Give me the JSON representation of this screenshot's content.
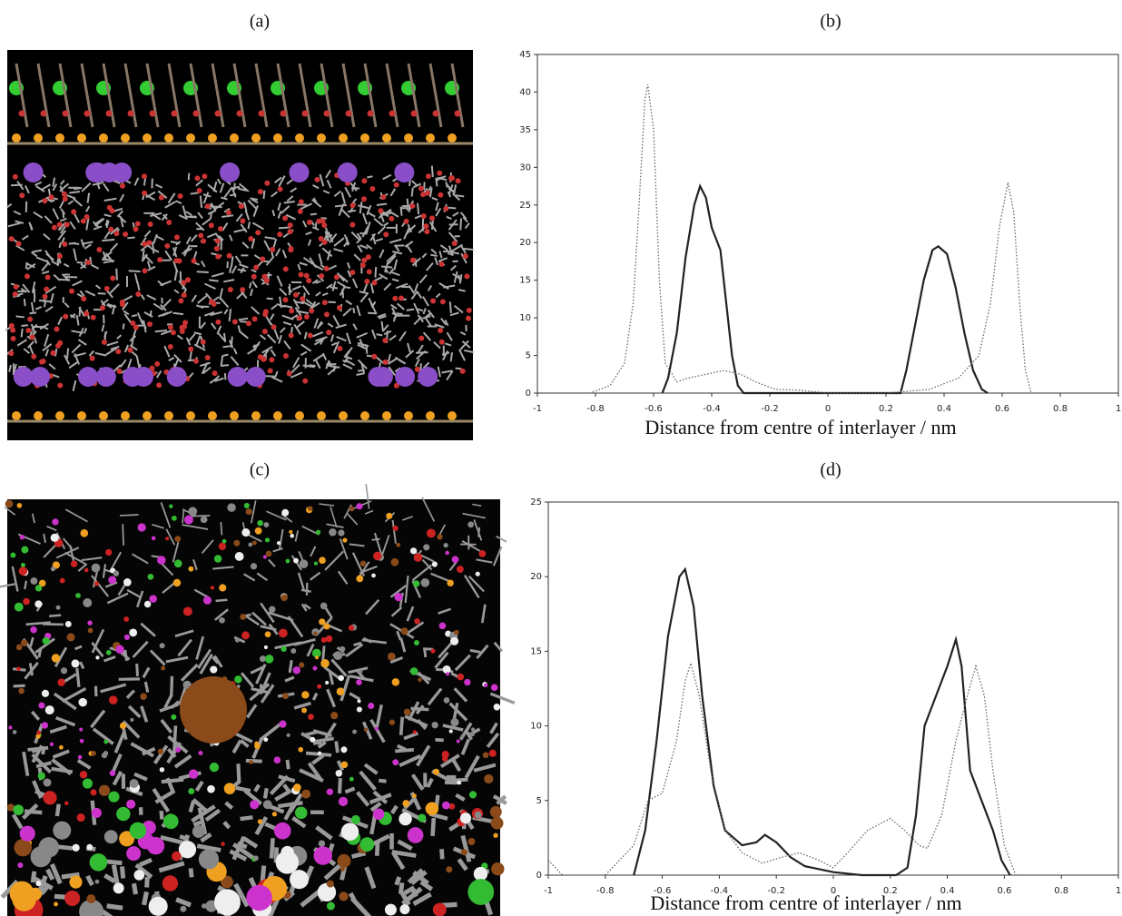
{
  "image_panels": [
    {
      "label": "(a)"
    },
    {
      "label": "(c)"
    }
  ],
  "chart_data": [
    {
      "type": "line",
      "title": "(b)",
      "x_label": "Distance from centre of interlayer / nm",
      "xlim": [
        -1,
        1
      ],
      "xticks": [
        -1,
        -0.8,
        -0.6,
        -0.4,
        -0.2,
        0,
        0.2,
        0.4,
        0.6,
        0.8,
        1
      ],
      "ylim": [
        0,
        45
      ],
      "yticks": [
        0,
        5,
        10,
        15,
        20,
        25,
        30,
        35,
        40,
        45
      ],
      "series": [
        {
          "color": "#222222",
          "style": "solid",
          "x": [
            -0.57,
            -0.55,
            -0.52,
            -0.49,
            -0.46,
            -0.44,
            -0.42,
            -0.4,
            -0.37,
            -0.35,
            -0.33,
            -0.31,
            -0.29,
            0,
            0.25,
            0.27,
            0.3,
            0.33,
            0.36,
            0.38,
            0.41,
            0.44,
            0.47,
            0.5,
            0.53,
            0.55
          ],
          "values": [
            0,
            2,
            8,
            18,
            25,
            27.5,
            26,
            22,
            19,
            12,
            5,
            1,
            0,
            0,
            0,
            3,
            9,
            15,
            19,
            19.5,
            18.5,
            14,
            8,
            3,
            0.5,
            0
          ]
        },
        {
          "color": "#666666",
          "style": "dotted",
          "x": [
            -0.82,
            -0.75,
            -0.7,
            -0.67,
            -0.65,
            -0.63,
            -0.62,
            -0.6,
            -0.58,
            -0.56,
            -0.52,
            -0.48,
            -0.42,
            -0.36,
            -0.3,
            -0.25,
            -0.18,
            -0.1,
            0,
            0.2,
            0.35,
            0.45,
            0.52,
            0.56,
            0.59,
            0.62,
            0.64,
            0.66,
            0.68,
            0.7
          ],
          "values": [
            0,
            1,
            4,
            12,
            25,
            39,
            41,
            35,
            15,
            4,
            1.5,
            2,
            2.5,
            3,
            2.5,
            1.5,
            0.5,
            0.4,
            0,
            0,
            0.5,
            2,
            5,
            12,
            22,
            28,
            24,
            12,
            3,
            0
          ]
        }
      ]
    },
    {
      "type": "line",
      "title": "(d)",
      "x_label": "Distance from centre of interlayer / nm",
      "xlim": [
        -1,
        1
      ],
      "xticks": [
        -1,
        -0.8,
        -0.6,
        -0.4,
        -0.2,
        0,
        0.2,
        0.4,
        0.6,
        0.8,
        1
      ],
      "ylim": [
        0,
        25
      ],
      "yticks": [
        0,
        5,
        10,
        15,
        20,
        25
      ],
      "series": [
        {
          "color": "#222222",
          "style": "solid",
          "x": [
            -0.7,
            -0.66,
            -0.62,
            -0.58,
            -0.54,
            -0.52,
            -0.49,
            -0.46,
            -0.42,
            -0.38,
            -0.32,
            -0.27,
            -0.24,
            -0.2,
            -0.15,
            -0.1,
            0,
            0.1,
            0.22,
            0.26,
            0.29,
            0.32,
            0.36,
            0.4,
            0.43,
            0.45,
            0.48,
            0.52,
            0.56,
            0.59,
            0.62
          ],
          "values": [
            0,
            3,
            9,
            16,
            20,
            20.5,
            18,
            12,
            6,
            3,
            2,
            2.2,
            2.7,
            2.2,
            1.2,
            0.6,
            0.2,
            0,
            0,
            0.5,
            4,
            10,
            12,
            14,
            15.8,
            14,
            7,
            5,
            3,
            1,
            0
          ]
        },
        {
          "color": "#666666",
          "style": "dotted",
          "x": [
            -1,
            -0.95,
            -0.8,
            -0.7,
            -0.65,
            -0.6,
            -0.55,
            -0.52,
            -0.5,
            -0.47,
            -0.43,
            -0.38,
            -0.32,
            -0.25,
            -0.18,
            -0.12,
            -0.05,
            0,
            0.05,
            0.12,
            0.2,
            0.25,
            0.3,
            0.33,
            0.38,
            0.43,
            0.47,
            0.5,
            0.53,
            0.56,
            0.6,
            0.64
          ],
          "values": [
            1,
            0,
            0,
            2,
            5,
            5.5,
            9,
            13,
            14.2,
            12,
            7,
            3,
            1.5,
            0.8,
            1.2,
            1.5,
            1,
            0.5,
            1.5,
            3,
            3.8,
            3,
            2,
            1.8,
            4,
            9,
            12,
            14,
            12,
            7,
            2,
            0
          ]
        }
      ]
    }
  ]
}
